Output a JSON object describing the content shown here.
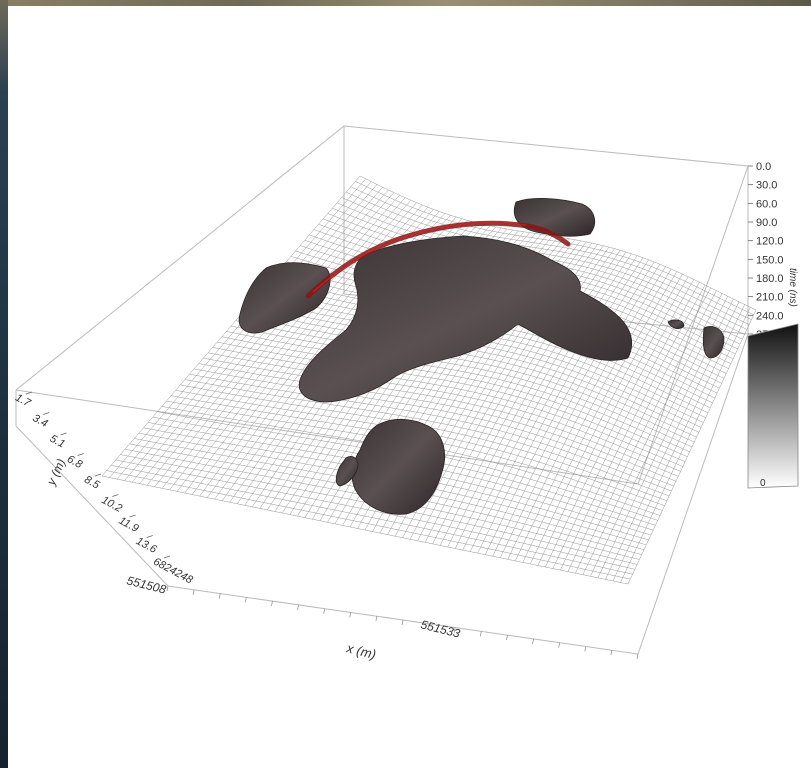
{
  "chart_data": {
    "type": "3d-surface",
    "zlabel": "time (ns)",
    "z_ticks": [
      "0.0",
      "30.0",
      "60.0",
      "90.0",
      "120.0",
      "150.0",
      "180.0",
      "210.0",
      "240.0",
      "270.0"
    ],
    "zlim": [
      0,
      270
    ],
    "y_ticks": [
      "1.7",
      "3.4",
      "5.1",
      "6.8",
      "8.5",
      "10.2",
      "11.9",
      "13.6",
      "6824248"
    ],
    "ylabel": "y (m)",
    "x_ticks": [
      "551508",
      "551533"
    ],
    "xlabel": "x (m)",
    "colorbar_label": "0",
    "grid": true
  }
}
